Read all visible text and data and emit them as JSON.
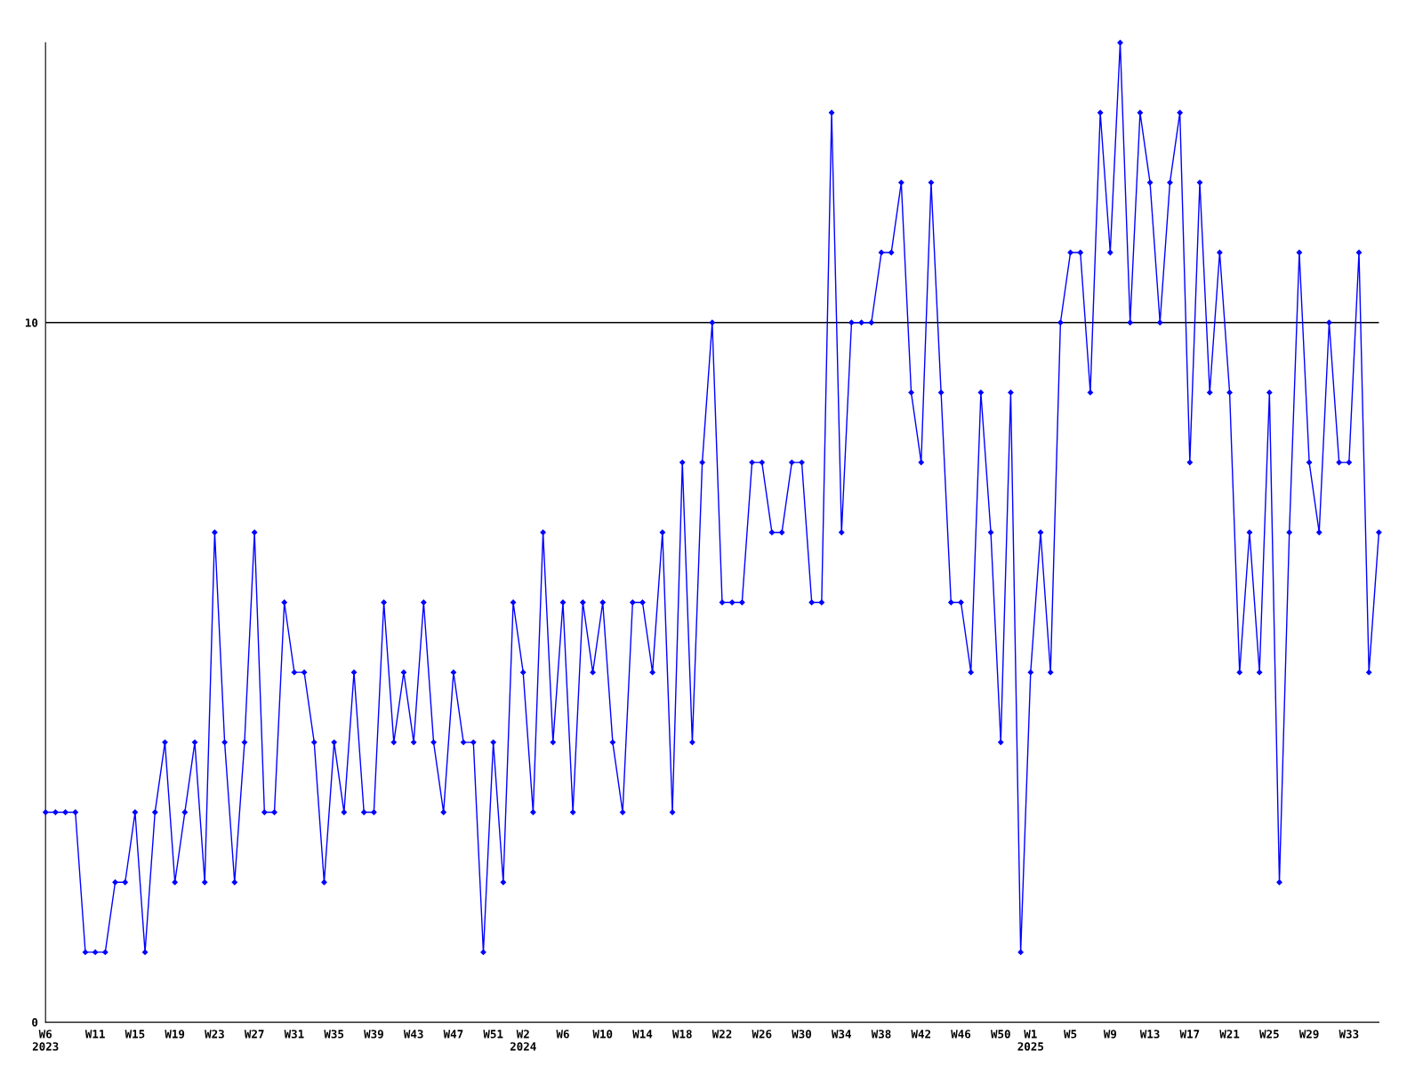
{
  "chart_data": {
    "type": "line",
    "categories": [
      "W6\n2023",
      null,
      null,
      null,
      null,
      "W11",
      null,
      null,
      null,
      "W15",
      null,
      null,
      null,
      "W19",
      null,
      null,
      null,
      "W23",
      null,
      null,
      null,
      "W27",
      null,
      null,
      null,
      "W31",
      null,
      null,
      null,
      "W35",
      null,
      null,
      null,
      "W39",
      null,
      null,
      null,
      "W43",
      null,
      null,
      null,
      "W47",
      null,
      null,
      null,
      "W51",
      null,
      null,
      "W2\n2024",
      null,
      null,
      null,
      "W6",
      null,
      null,
      null,
      "W10",
      null,
      null,
      null,
      "W14",
      null,
      null,
      null,
      "W18",
      null,
      null,
      null,
      "W22",
      null,
      null,
      null,
      "W26",
      null,
      null,
      null,
      "W30",
      null,
      null,
      null,
      "W34",
      null,
      null,
      null,
      "W38",
      null,
      null,
      null,
      "W42",
      null,
      null,
      null,
      "W46",
      null,
      null,
      null,
      "W50",
      null,
      null,
      "W1\n2025",
      null,
      null,
      null,
      "W5",
      null,
      null,
      null,
      "W9",
      null,
      null,
      null,
      "W13",
      null,
      null,
      null,
      "W17",
      null,
      null,
      null,
      "W21",
      null,
      null,
      null,
      "W25",
      null,
      null,
      null,
      "W29",
      null,
      null,
      null,
      "W33",
      null,
      null,
      null
    ],
    "series": [
      {
        "color": "#0000ff",
        "values": [
          3,
          3,
          3,
          3,
          1,
          1,
          1,
          2,
          2,
          3,
          1,
          3,
          4,
          2,
          3,
          4,
          2,
          7,
          4,
          2,
          4,
          7,
          3,
          3,
          6,
          5,
          5,
          4,
          2,
          4,
          3,
          5,
          3,
          3,
          6,
          4,
          5,
          4,
          6,
          4,
          3,
          5,
          4,
          4,
          1,
          4,
          2,
          6,
          5,
          3,
          7,
          4,
          6,
          3,
          6,
          5,
          6,
          4,
          3,
          6,
          6,
          5,
          7,
          3,
          8,
          4,
          8,
          10,
          6,
          6,
          6,
          8,
          8,
          7,
          7,
          8,
          8,
          6,
          6,
          13,
          7,
          10,
          10,
          10,
          11,
          11,
          12,
          9,
          8,
          12,
          9,
          6,
          6,
          5,
          9,
          7,
          4,
          9,
          1,
          5,
          7,
          5,
          10,
          11,
          11,
          9,
          13,
          11,
          14,
          10,
          13,
          12,
          10,
          12,
          13,
          8,
          12,
          9,
          11,
          9,
          5,
          7,
          5,
          9,
          2,
          7,
          11,
          8,
          7,
          10,
          8,
          8,
          11,
          5,
          7
        ]
      }
    ],
    "ylim": [
      0,
      14
    ],
    "yticks": [
      0,
      10
    ],
    "grid": "y",
    "marker": "diamond",
    "line_style": "solid"
  }
}
